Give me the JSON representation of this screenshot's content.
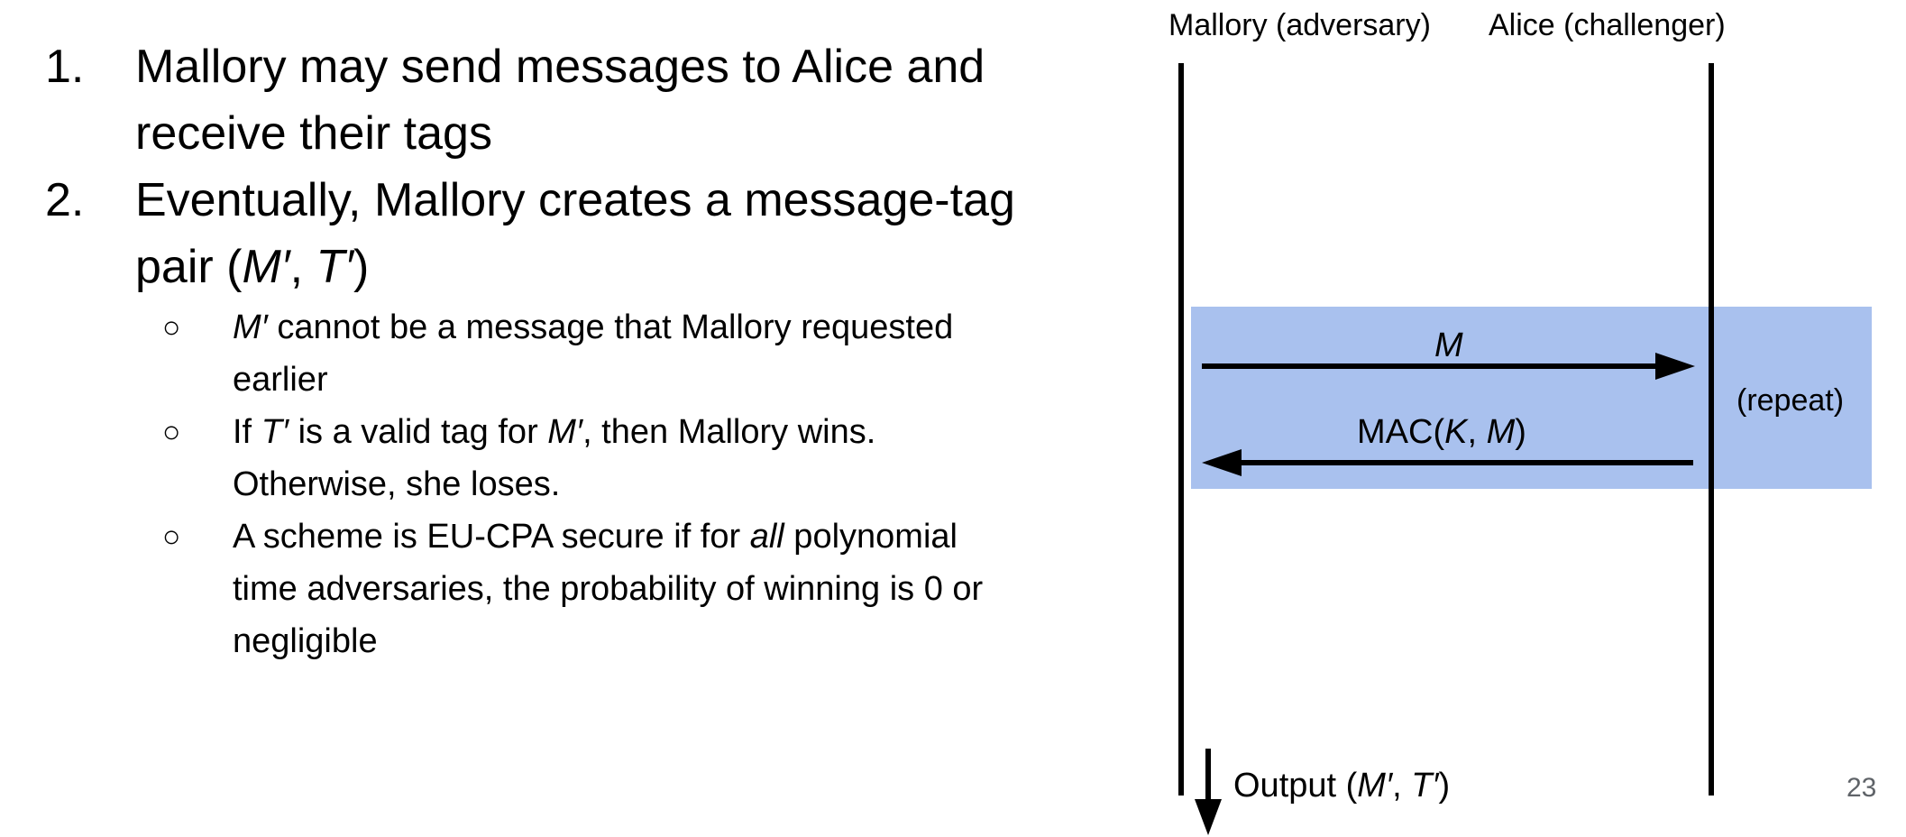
{
  "list": {
    "item1": {
      "number": "1.",
      "line1": "Mallory may send messages to Alice and",
      "line2": "receive their tags"
    },
    "item2": {
      "number": "2.",
      "line1": "Eventually, Mallory creates a message-tag",
      "line2_pre": "pair (",
      "m_prime": "M′",
      "comma": ", ",
      "t_prime": "T′",
      "line2_post": ")"
    },
    "subitems": {
      "bullet_char": "○",
      "s1": {
        "m": "M′",
        "line1_rest": " cannot be a message that Mallory requested",
        "line2": "earlier"
      },
      "s2": {
        "if": "If ",
        "t": "T′",
        "mid": " is a valid tag for ",
        "m": "M′",
        "rest": ", then Mallory wins.",
        "line2": "Otherwise, she loses."
      },
      "s3": {
        "pre": "A scheme is EU-CPA secure if for ",
        "all": "all",
        "post": " polynomial",
        "line2": "time adversaries, the probability of winning is 0 or",
        "line3": "negligible"
      }
    }
  },
  "diagram": {
    "mallory_label": "Mallory (adversary)",
    "alice_label": "Alice (challenger)",
    "message_label": "M",
    "mac": {
      "pre": "MAC(",
      "k": "K",
      "comma": ", ",
      "m": "M",
      "post": ")"
    },
    "repeat_label": "(repeat)",
    "output": {
      "pre": "Output (",
      "m": "M′",
      "comma": ", ",
      "t": "T′",
      "post": ")"
    },
    "highlight_color": "#a9c1ee"
  },
  "page_number": "23"
}
